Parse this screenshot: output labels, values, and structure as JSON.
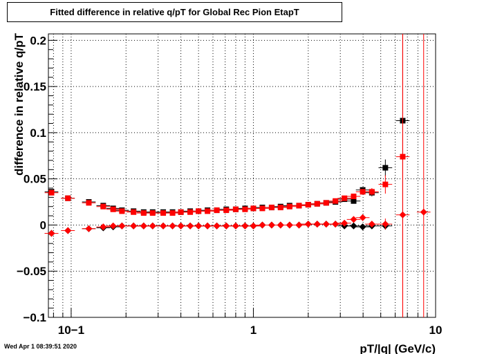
{
  "chart_data": {
    "type": "scatter",
    "title": "Fitted difference in relative q/pT for Global Rec Pion EtapT",
    "xlabel": "pT/|q| (GeV/c)",
    "ylabel": "difference in relative q/pT",
    "x_scale": "log",
    "xlim": [
      0.075,
      10
    ],
    "ylim": [
      -0.1,
      0.207
    ],
    "grid": true,
    "x_tick_labels": [
      {
        "value": 0.1,
        "label": "10−1"
      },
      {
        "value": 1,
        "label": "1"
      },
      {
        "value": 10,
        "label": "10"
      }
    ],
    "y_tick_labels": [
      {
        "value": -0.1,
        "label": "−0.1"
      },
      {
        "value": -0.05,
        "label": "−0.05"
      },
      {
        "value": 0,
        "label": "0"
      },
      {
        "value": 0.05,
        "label": "0.05"
      },
      {
        "value": 0.1,
        "label": "0.1"
      },
      {
        "value": 0.15,
        "label": "0.15"
      },
      {
        "value": 0.2,
        "label": "0.2"
      }
    ],
    "series": [
      {
        "marker": "square",
        "color": "#000000",
        "points": [
          [
            0.078,
            0.036
          ],
          [
            0.096,
            0.029
          ],
          [
            0.125,
            0.025
          ],
          [
            0.15,
            0.021
          ],
          [
            0.17,
            0.018
          ],
          [
            0.19,
            0.016
          ],
          [
            0.22,
            0.015
          ],
          [
            0.25,
            0.014
          ],
          [
            0.28,
            0.014
          ],
          [
            0.32,
            0.014
          ],
          [
            0.36,
            0.014
          ],
          [
            0.4,
            0.014
          ],
          [
            0.45,
            0.015
          ],
          [
            0.5,
            0.015
          ],
          [
            0.56,
            0.016
          ],
          [
            0.63,
            0.016
          ],
          [
            0.71,
            0.017
          ],
          [
            0.8,
            0.017
          ],
          [
            0.9,
            0.018
          ],
          [
            1.0,
            0.018
          ],
          [
            1.12,
            0.019
          ],
          [
            1.26,
            0.019
          ],
          [
            1.41,
            0.02
          ],
          [
            1.58,
            0.021
          ],
          [
            1.78,
            0.021
          ],
          [
            2.0,
            0.022
          ],
          [
            2.24,
            0.023
          ],
          [
            2.51,
            0.024
          ],
          [
            2.82,
            0.025
          ],
          [
            3.16,
            0.028
          ],
          [
            3.55,
            0.026
          ],
          [
            3.98,
            0.038
          ],
          [
            4.47,
            0.035
          ],
          [
            5.3,
            0.062
          ],
          [
            6.6,
            0.113
          ]
        ],
        "errors": [
          0.002,
          0.002,
          0.001,
          0.001,
          0.001,
          0.001,
          0.001,
          0.001,
          0.001,
          0.001,
          0.001,
          0.001,
          0.001,
          0.001,
          0.001,
          0.001,
          0.001,
          0.001,
          0.001,
          0.001,
          0.001,
          0.001,
          0.001,
          0.001,
          0.001,
          0.001,
          0.001,
          0.001,
          0.001,
          0.002,
          0.002,
          0.003,
          0.004,
          0.009,
          0.16
        ]
      },
      {
        "marker": "diamond",
        "color": "#000000",
        "points": [
          [
            0.078,
            -0.009
          ],
          [
            0.096,
            -0.006
          ],
          [
            0.125,
            -0.004
          ],
          [
            0.15,
            -0.003
          ],
          [
            0.17,
            -0.002
          ],
          [
            0.19,
            -0.001
          ],
          [
            0.22,
            -0.001
          ],
          [
            0.25,
            -0.001
          ],
          [
            0.28,
            -0.001
          ],
          [
            0.32,
            -0.001
          ],
          [
            0.36,
            -0.001
          ],
          [
            0.4,
            -0.001
          ],
          [
            0.45,
            -0.001
          ],
          [
            0.5,
            -0.001
          ],
          [
            0.56,
            -0.001
          ],
          [
            0.63,
            -0.001
          ],
          [
            0.71,
            -0.001
          ],
          [
            0.8,
            -0.001
          ],
          [
            0.9,
            -0.001
          ],
          [
            1.0,
            -0.001
          ],
          [
            1.12,
            0.0
          ],
          [
            1.26,
            0.0
          ],
          [
            1.41,
            0.0
          ],
          [
            1.58,
            0.0
          ],
          [
            1.78,
            0.0
          ],
          [
            2.0,
            0.001
          ],
          [
            2.24,
            0.001
          ],
          [
            2.51,
            0.001
          ],
          [
            2.82,
            0.001
          ],
          [
            3.16,
            -0.001
          ],
          [
            3.55,
            -0.001
          ],
          [
            3.98,
            -0.002
          ],
          [
            4.47,
            -0.001
          ],
          [
            5.3,
            -0.001
          ]
        ],
        "errors": [
          0.001,
          0.001,
          0.001,
          0.001,
          0.001,
          0.001,
          0.001,
          0.001,
          0.001,
          0.001,
          0.001,
          0.001,
          0.001,
          0.001,
          0.001,
          0.001,
          0.001,
          0.001,
          0.001,
          0.001,
          0.001,
          0.001,
          0.001,
          0.001,
          0.001,
          0.001,
          0.001,
          0.001,
          0.001,
          0.001,
          0.001,
          0.002,
          0.002,
          0.004
        ]
      },
      {
        "marker": "square",
        "color": "#ff0000",
        "points": [
          [
            0.078,
            0.035
          ],
          [
            0.096,
            0.029
          ],
          [
            0.125,
            0.024
          ],
          [
            0.15,
            0.02
          ],
          [
            0.17,
            0.017
          ],
          [
            0.19,
            0.015
          ],
          [
            0.22,
            0.014
          ],
          [
            0.25,
            0.013
          ],
          [
            0.28,
            0.013
          ],
          [
            0.32,
            0.013
          ],
          [
            0.36,
            0.013
          ],
          [
            0.4,
            0.014
          ],
          [
            0.45,
            0.014
          ],
          [
            0.5,
            0.015
          ],
          [
            0.56,
            0.015
          ],
          [
            0.63,
            0.016
          ],
          [
            0.71,
            0.016
          ],
          [
            0.8,
            0.017
          ],
          [
            0.9,
            0.017
          ],
          [
            1.0,
            0.018
          ],
          [
            1.12,
            0.018
          ],
          [
            1.26,
            0.019
          ],
          [
            1.41,
            0.019
          ],
          [
            1.58,
            0.02
          ],
          [
            1.78,
            0.021
          ],
          [
            2.0,
            0.022
          ],
          [
            2.24,
            0.023
          ],
          [
            2.51,
            0.024
          ],
          [
            2.82,
            0.026
          ],
          [
            3.16,
            0.029
          ],
          [
            3.55,
            0.031
          ],
          [
            3.98,
            0.036
          ],
          [
            4.47,
            0.036
          ],
          [
            5.3,
            0.044
          ],
          [
            6.6,
            0.074
          ]
        ],
        "errors": [
          0.002,
          0.002,
          0.001,
          0.001,
          0.001,
          0.001,
          0.001,
          0.001,
          0.001,
          0.001,
          0.001,
          0.001,
          0.001,
          0.001,
          0.001,
          0.001,
          0.001,
          0.001,
          0.001,
          0.001,
          0.001,
          0.001,
          0.001,
          0.001,
          0.001,
          0.001,
          0.001,
          0.001,
          0.001,
          0.002,
          0.002,
          0.003,
          0.004,
          0.01,
          0.3
        ]
      },
      {
        "marker": "diamond",
        "color": "#ff0000",
        "points": [
          [
            0.078,
            -0.009
          ],
          [
            0.096,
            -0.006
          ],
          [
            0.125,
            -0.004
          ],
          [
            0.15,
            -0.002
          ],
          [
            0.17,
            -0.001
          ],
          [
            0.19,
            -0.001
          ],
          [
            0.22,
            -0.001
          ],
          [
            0.25,
            -0.001
          ],
          [
            0.28,
            -0.001
          ],
          [
            0.32,
            -0.001
          ],
          [
            0.36,
            -0.001
          ],
          [
            0.4,
            -0.001
          ],
          [
            0.45,
            -0.001
          ],
          [
            0.5,
            -0.001
          ],
          [
            0.56,
            -0.001
          ],
          [
            0.63,
            -0.001
          ],
          [
            0.71,
            -0.001
          ],
          [
            0.8,
            -0.001
          ],
          [
            0.9,
            -0.001
          ],
          [
            1.0,
            -0.001
          ],
          [
            1.12,
            0.0
          ],
          [
            1.26,
            0.0
          ],
          [
            1.41,
            0.0
          ],
          [
            1.58,
            0.0
          ],
          [
            1.78,
            0.0
          ],
          [
            2.0,
            0.001
          ],
          [
            2.24,
            0.001
          ],
          [
            2.51,
            0.001
          ],
          [
            2.82,
            0.001
          ],
          [
            3.16,
            0.002
          ],
          [
            3.55,
            0.006
          ],
          [
            3.98,
            0.008
          ],
          [
            4.47,
            0.001
          ],
          [
            5.3,
            0.001
          ],
          [
            6.6,
            0.011
          ],
          [
            8.6,
            0.014
          ]
        ],
        "errors": [
          0.001,
          0.001,
          0.001,
          0.001,
          0.001,
          0.001,
          0.001,
          0.001,
          0.001,
          0.001,
          0.001,
          0.001,
          0.001,
          0.001,
          0.001,
          0.001,
          0.001,
          0.001,
          0.001,
          0.001,
          0.001,
          0.001,
          0.001,
          0.001,
          0.001,
          0.001,
          0.001,
          0.001,
          0.001,
          0.001,
          0.002,
          0.002,
          0.003,
          0.006,
          0.3,
          0.3
        ]
      }
    ]
  },
  "footer": {
    "timestamp": "Wed Apr  1 08:39:51 2020"
  }
}
